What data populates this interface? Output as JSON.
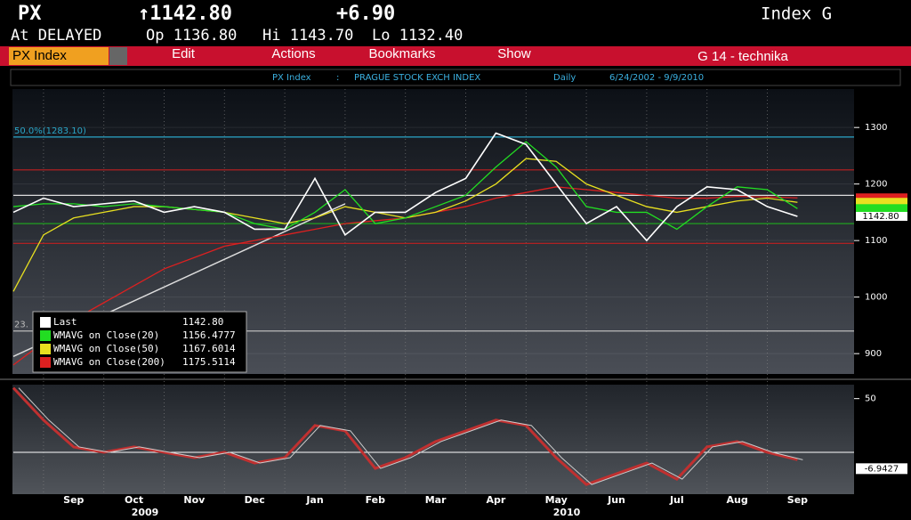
{
  "header": {
    "ticker": "PX",
    "last": "↑1142.80",
    "change": "+6.90",
    "security": "Index G",
    "status": "At DELAYED",
    "open": "Op 1136.80",
    "high": "Hi 1143.70",
    "low": "Lo 1132.40"
  },
  "toolbar": {
    "security": "PX Index",
    "menus": [
      "Edit",
      "Actions",
      "Bookmarks",
      "Show"
    ],
    "page": "G 14 - technika"
  },
  "info_bar": {
    "security": "PX Index",
    "separator": ":",
    "name": "PRAGUE STOCK EXCH INDEX",
    "period": "Daily",
    "range": "6/24/2002 - 9/9/2010"
  },
  "years": [
    "2009",
    "2010"
  ],
  "chart_data": [
    {
      "type": "line",
      "categories": [
        null,
        null,
        "Sep",
        null,
        "Oct",
        null,
        "Nov",
        null,
        "Dec",
        null,
        "Jan",
        null,
        "Feb",
        null,
        "Mar",
        null,
        "Apr",
        null,
        "May",
        null,
        "Jun",
        null,
        "Jul",
        null,
        "Aug",
        null,
        "Sep"
      ],
      "ylim": [
        864,
        1368
      ],
      "yticks": [
        900,
        1000,
        1100,
        1200,
        1300
      ],
      "grid": true,
      "series": [
        {
          "name": "Last",
          "color": "#ffffff",
          "last_label": "1142.80",
          "values": [
            1150,
            1175,
            1160,
            1165,
            1170,
            1150,
            1160,
            1150,
            1120,
            1120,
            1210,
            1110,
            1150,
            1150,
            1185,
            1210,
            1290,
            1270,
            1200,
            1130,
            1160,
            1100,
            1160,
            1195,
            1190,
            1160,
            1142.8
          ]
        },
        {
          "name": "WMAVG on Close(20)",
          "color": "#22dd22",
          "last_label": "1156.4777",
          "values": [
            1160,
            1165,
            1165,
            1160,
            1165,
            1160,
            1155,
            1150,
            1130,
            1120,
            1150,
            1190,
            1130,
            1140,
            1160,
            1180,
            1230,
            1275,
            1230,
            1160,
            1150,
            1150,
            1120,
            1160,
            1195,
            1190,
            1156.4777
          ]
        },
        {
          "name": "WMAVG on Close(50)",
          "color": "#e8e020",
          "last_label": "1167.6014",
          "values": [
            1010,
            1110,
            1140,
            1150,
            1160,
            1160,
            1155,
            1150,
            1140,
            1130,
            1140,
            1160,
            1150,
            1140,
            1150,
            1170,
            1200,
            1245,
            1240,
            1200,
            1180,
            1160,
            1150,
            1160,
            1170,
            1175,
            1167.6014
          ]
        },
        {
          "name": "WMAVG on Close(200)",
          "color": "#dd2020",
          "last_label": "1175.5114",
          "values": [
            880,
            920,
            960,
            990,
            1020,
            1050,
            1070,
            1090,
            1100,
            1110,
            1120,
            1130,
            1135,
            1140,
            1150,
            1160,
            1175,
            1185,
            1195,
            1190,
            1185,
            1180,
            1175,
            1175,
            1178,
            1177,
            1175.5114
          ]
        }
      ],
      "levels": [
        {
          "value": 1283.1,
          "color": "#2aa6c8",
          "label": "50.0%(1283.10)"
        },
        {
          "value": 1225,
          "color": "#c02020"
        },
        {
          "value": 1180,
          "color": "#dddddd"
        },
        {
          "value": 1130,
          "color": "#20a020"
        },
        {
          "value": 1095,
          "color": "#c02020"
        },
        {
          "value": 940,
          "color": "#bbbbbb",
          "label": "23."
        }
      ],
      "trendline": {
        "color": "#dddddd",
        "points": [
          [
            0,
            895
          ],
          [
            11,
            1165
          ]
        ]
      }
    },
    {
      "type": "area",
      "ylim": [
        -39,
        63
      ],
      "yticks": [
        50
      ],
      "zero": 0,
      "series": [
        {
          "color": "#c03030",
          "values": [
            60,
            30,
            5,
            0,
            5,
            0,
            -5,
            0,
            -10,
            -5,
            25,
            20,
            -15,
            -5,
            10,
            20,
            30,
            25,
            -5,
            -30,
            -20,
            -10,
            -25,
            5,
            10,
            0,
            -6.9427
          ]
        }
      ]
    }
  ]
}
